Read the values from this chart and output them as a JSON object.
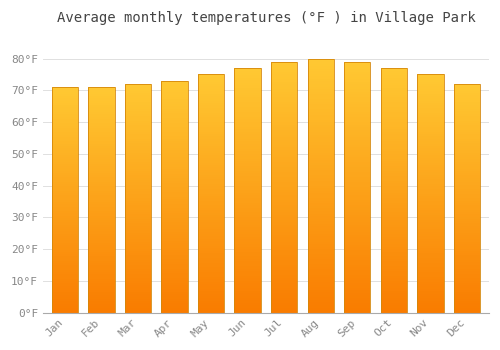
{
  "title": "Average monthly temperatures (°F ) in Village Park",
  "months": [
    "Jan",
    "Feb",
    "Mar",
    "Apr",
    "May",
    "Jun",
    "Jul",
    "Aug",
    "Sep",
    "Oct",
    "Nov",
    "Dec"
  ],
  "values": [
    71,
    71,
    72,
    73,
    75,
    77,
    79,
    80,
    79,
    77,
    75,
    72
  ],
  "bar_color_top": "#FFC933",
  "bar_color_bottom": "#F97C00",
  "bar_edge_color": "#D4870A",
  "background_color": "#FFFFFF",
  "grid_color": "#E0E0E0",
  "ylim": [
    0,
    88
  ],
  "ytick_step": 10,
  "title_fontsize": 10,
  "tick_fontsize": 8,
  "font_family": "monospace",
  "title_color": "#444444",
  "tick_color": "#888888"
}
